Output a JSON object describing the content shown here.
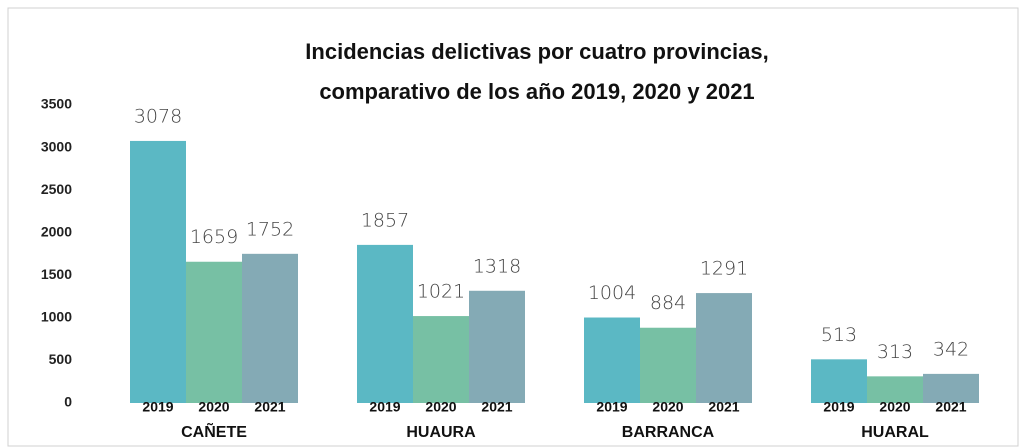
{
  "chart_data": {
    "type": "bar",
    "title": [
      "Incidencias delictivas por cuatro provincias,",
      "comparativo de los año 2019, 2020 y 2021"
    ],
    "categories": [
      "CAÑETE",
      "HUAURA",
      "BARRANCA",
      "HUARAL"
    ],
    "series": [
      {
        "name": "2019",
        "color": "#5bb8c4",
        "values": [
          3078,
          1857,
          1004,
          513
        ]
      },
      {
        "name": "2020",
        "color": "#77c0a4",
        "values": [
          1659,
          1021,
          884,
          313
        ]
      },
      {
        "name": "2021",
        "color": "#84aab5",
        "values": [
          1752,
          1318,
          1291,
          342
        ]
      }
    ],
    "ylim": [
      0,
      3500
    ],
    "yticks": [
      0,
      500,
      1000,
      1500,
      2000,
      2500,
      3000,
      3500
    ],
    "grid": false
  }
}
